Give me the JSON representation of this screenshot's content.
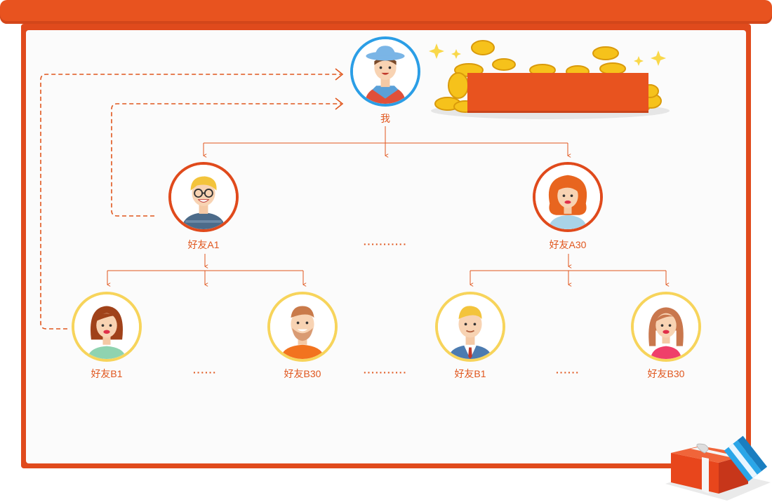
{
  "nodes": {
    "me": "我",
    "friend_a1": "好友A1",
    "friend_a30": "好友A30",
    "friend_b1_left": "好友B1",
    "friend_b30_left": "好友B30",
    "friend_b1_right": "好友B1",
    "friend_b30_right": "好友B30"
  },
  "ellipses": {
    "mid_a": "···········",
    "left_b": "······",
    "mid_b": "···········",
    "right_b": "······"
  },
  "colors": {
    "brand": "#e8531f",
    "line": "#e0561d",
    "blue_ring": "#2b9ee6",
    "yellow_ring": "#f7d45b"
  },
  "icons": [
    "coins-icon",
    "gift-icon",
    "sparkle-icon"
  ]
}
